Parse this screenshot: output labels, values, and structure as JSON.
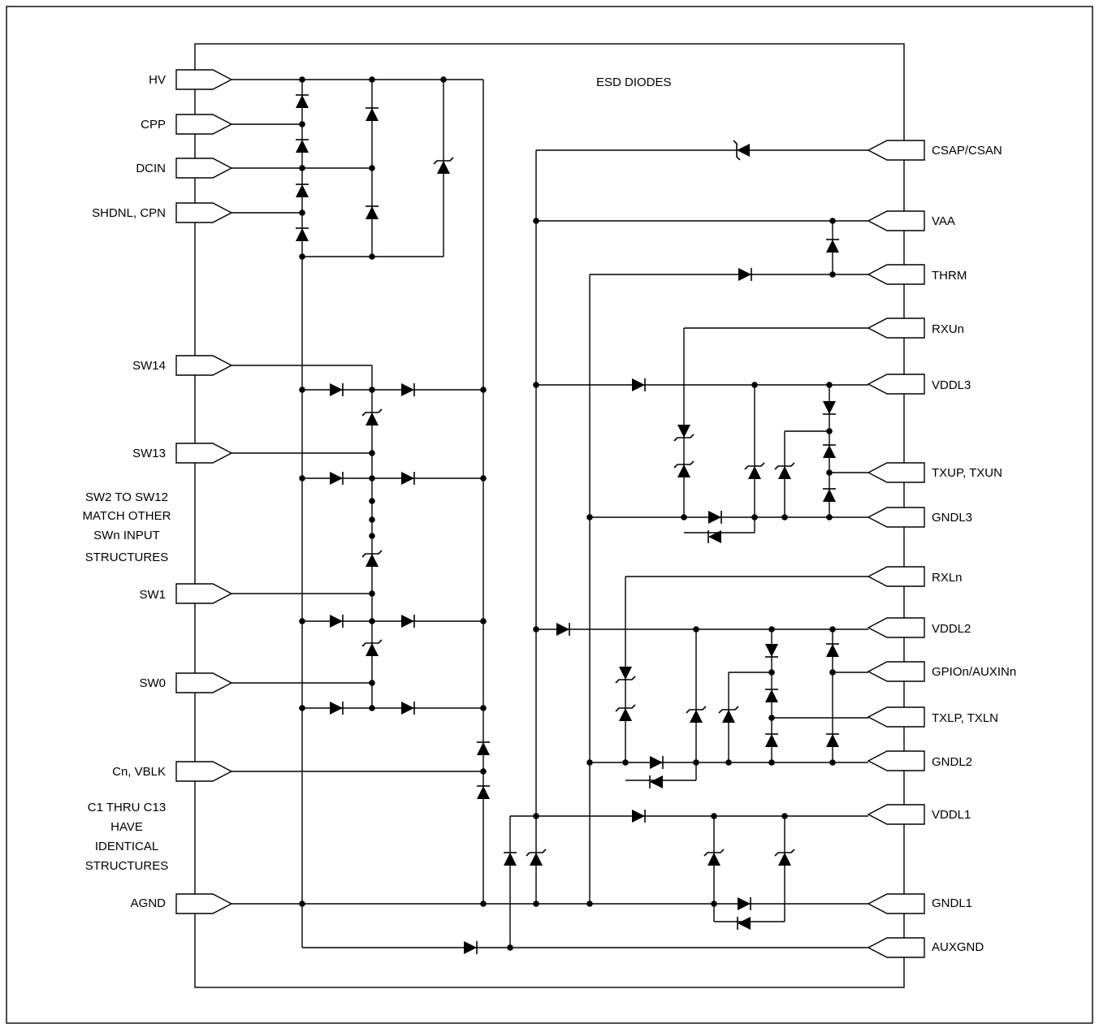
{
  "diagram": {
    "title": "ESD DIODES",
    "left_pins": [
      "HV",
      "CPP",
      "DCIN",
      "SHDNL, CPN",
      "SW14",
      "SW13",
      "SW1",
      "SW0",
      "Cn, VBLK",
      "AGND"
    ],
    "right_pins": [
      "CSAP/CSAN",
      "VAA",
      "THRM",
      "RXUn",
      "VDDL3",
      "TXUP, TXUN",
      "GNDL3",
      "RXLn",
      "VDDL2",
      "GPIOn/AUXINn",
      "TXLP, TXLN",
      "GNDL2",
      "VDDL1",
      "GNDL1",
      "AUXGND"
    ],
    "notes": {
      "sw_note": [
        "SW2 TO SW12",
        "MATCH OTHER",
        "SWn INPUT",
        "STRUCTURES"
      ],
      "c_note": [
        "C1 THRU C13",
        "HAVE",
        "IDENTICAL",
        "STRUCTURES"
      ]
    }
  }
}
